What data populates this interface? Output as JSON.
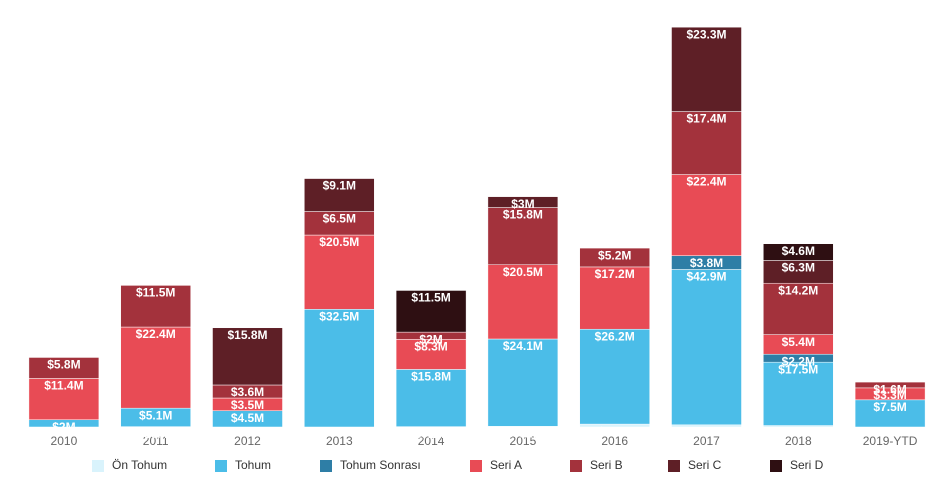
{
  "chart_data": {
    "type": "stacked_bar",
    "categories": [
      "2010",
      "2011",
      "2012",
      "2013",
      "2014",
      "2015",
      "2016",
      "2017",
      "2018",
      "2019-YTD"
    ],
    "ylim": [
      0,
      111
    ],
    "series": [
      {
        "name": "Ön Tohum",
        "color": "#d9f3fc",
        "values": [
          null,
          0.1,
          null,
          null,
          0.1,
          0.2,
          0.8,
          0.6,
          0.4,
          null
        ],
        "value_labels": [
          null,
          "$0M",
          null,
          null,
          "$0.1M",
          "$0.2M",
          "$0.8M",
          "$0.6M",
          "$0.4M",
          null
        ]
      },
      {
        "name": "Tohum",
        "color": "#4bbde8",
        "values": [
          2,
          5.1,
          4.5,
          32.5,
          15.8,
          24.1,
          26.2,
          42.9,
          17.5,
          7.5
        ],
        "value_labels": [
          "$2M",
          "$5.1M",
          "$4.5M",
          "$32.5M",
          "$15.8M",
          "$24.1M",
          "$26.2M",
          "$42.9M",
          "$17.5M",
          "$7.5M"
        ]
      },
      {
        "name": "Tohum Sonrası",
        "color": "#2e7ea6",
        "values": [
          null,
          null,
          null,
          null,
          null,
          null,
          null,
          3.8,
          2.2,
          null
        ],
        "value_labels": [
          null,
          null,
          null,
          null,
          null,
          null,
          null,
          "$3.8M",
          "$2.2M",
          null
        ]
      },
      {
        "name": "Seri A",
        "color": "#e84b55",
        "values": [
          11.4,
          22.4,
          3.5,
          20.5,
          8.3,
          20.5,
          17.2,
          22.4,
          5.4,
          3.3
        ],
        "value_labels": [
          "$11.4M",
          "$22.4M",
          "$3.5M",
          "$20.5M",
          "$8.3M",
          "$20.5M",
          "$17.2M",
          "$22.4M",
          "$5.4M",
          "$3.3M"
        ]
      },
      {
        "name": "Seri B",
        "color": "#a3323c",
        "values": [
          5.8,
          11.5,
          3.6,
          6.5,
          2,
          15.8,
          5.2,
          17.4,
          14.2,
          1.6
        ],
        "value_labels": [
          "$5.8M",
          "$11.5M",
          "$3.6M",
          "$6.5M",
          "$2M",
          "$15.8M",
          "$5.2M",
          "$17.4M",
          "$14.2M",
          "$1.6M"
        ]
      },
      {
        "name": "Seri C",
        "color": "#5e1f26",
        "values": [
          null,
          null,
          15.8,
          9.1,
          null,
          3,
          null,
          23.3,
          6.3,
          null
        ],
        "value_labels": [
          null,
          null,
          "$15.8M",
          "$9.1M",
          null,
          "$3M",
          null,
          "$23.3M",
          "$6.3M",
          null
        ]
      },
      {
        "name": "Seri D",
        "color": "#2e0f12",
        "values": [
          null,
          null,
          null,
          null,
          11.5,
          null,
          null,
          null,
          4.6,
          null
        ],
        "value_labels": [
          null,
          null,
          null,
          null,
          "$11.5M",
          null,
          null,
          null,
          "$4.6M",
          null
        ]
      }
    ]
  }
}
